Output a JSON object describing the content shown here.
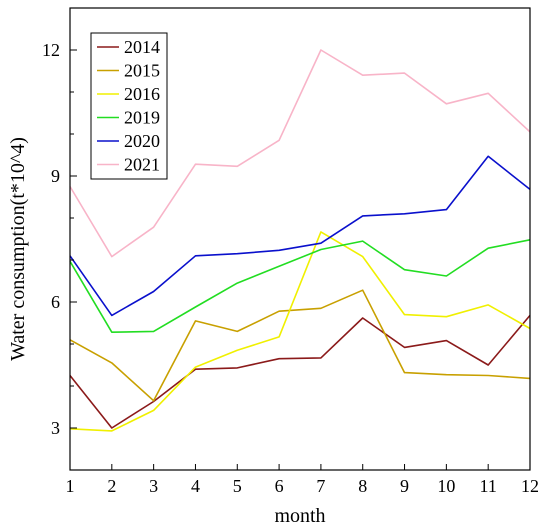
{
  "chart_data": {
    "type": "line",
    "xlabel": "month",
    "ylabel": "Water consumption(t*10^4)",
    "x": [
      1,
      2,
      3,
      4,
      5,
      6,
      7,
      8,
      9,
      10,
      11,
      12
    ],
    "xlim": [
      1,
      12
    ],
    "ylim": [
      2,
      13
    ],
    "yticks": [
      3,
      6,
      9,
      12
    ],
    "grid": false,
    "legend_position": "top-left",
    "series": [
      {
        "name": "2014",
        "color": "#8B1A1A",
        "values": [
          4.25,
          3.0,
          3.63,
          4.4,
          4.43,
          4.65,
          4.67,
          5.62,
          4.92,
          5.08,
          4.5,
          5.68
        ]
      },
      {
        "name": "2015",
        "color": "#C8A000",
        "values": [
          5.1,
          4.55,
          3.65,
          5.55,
          5.3,
          5.78,
          5.85,
          6.28,
          4.32,
          4.27,
          4.25,
          4.18
        ]
      },
      {
        "name": "2016",
        "color": "#F0F000",
        "values": [
          2.98,
          2.93,
          3.42,
          4.45,
          4.85,
          5.17,
          7.67,
          7.08,
          5.7,
          5.65,
          5.93,
          5.37
        ]
      },
      {
        "name": "2019",
        "color": "#22DD22",
        "values": [
          6.97,
          5.28,
          5.3,
          5.88,
          6.45,
          6.85,
          7.25,
          7.45,
          6.77,
          6.62,
          7.28,
          7.48
        ]
      },
      {
        "name": "2020",
        "color": "#0A10CC",
        "values": [
          7.1,
          5.68,
          6.25,
          7.1,
          7.15,
          7.23,
          7.4,
          8.05,
          8.1,
          8.2,
          9.47,
          8.68
        ]
      },
      {
        "name": "2021",
        "color": "#F8B4C8",
        "values": [
          8.75,
          7.08,
          7.78,
          9.28,
          9.23,
          9.85,
          12.0,
          11.4,
          11.45,
          10.72,
          10.97,
          10.05
        ]
      }
    ]
  }
}
